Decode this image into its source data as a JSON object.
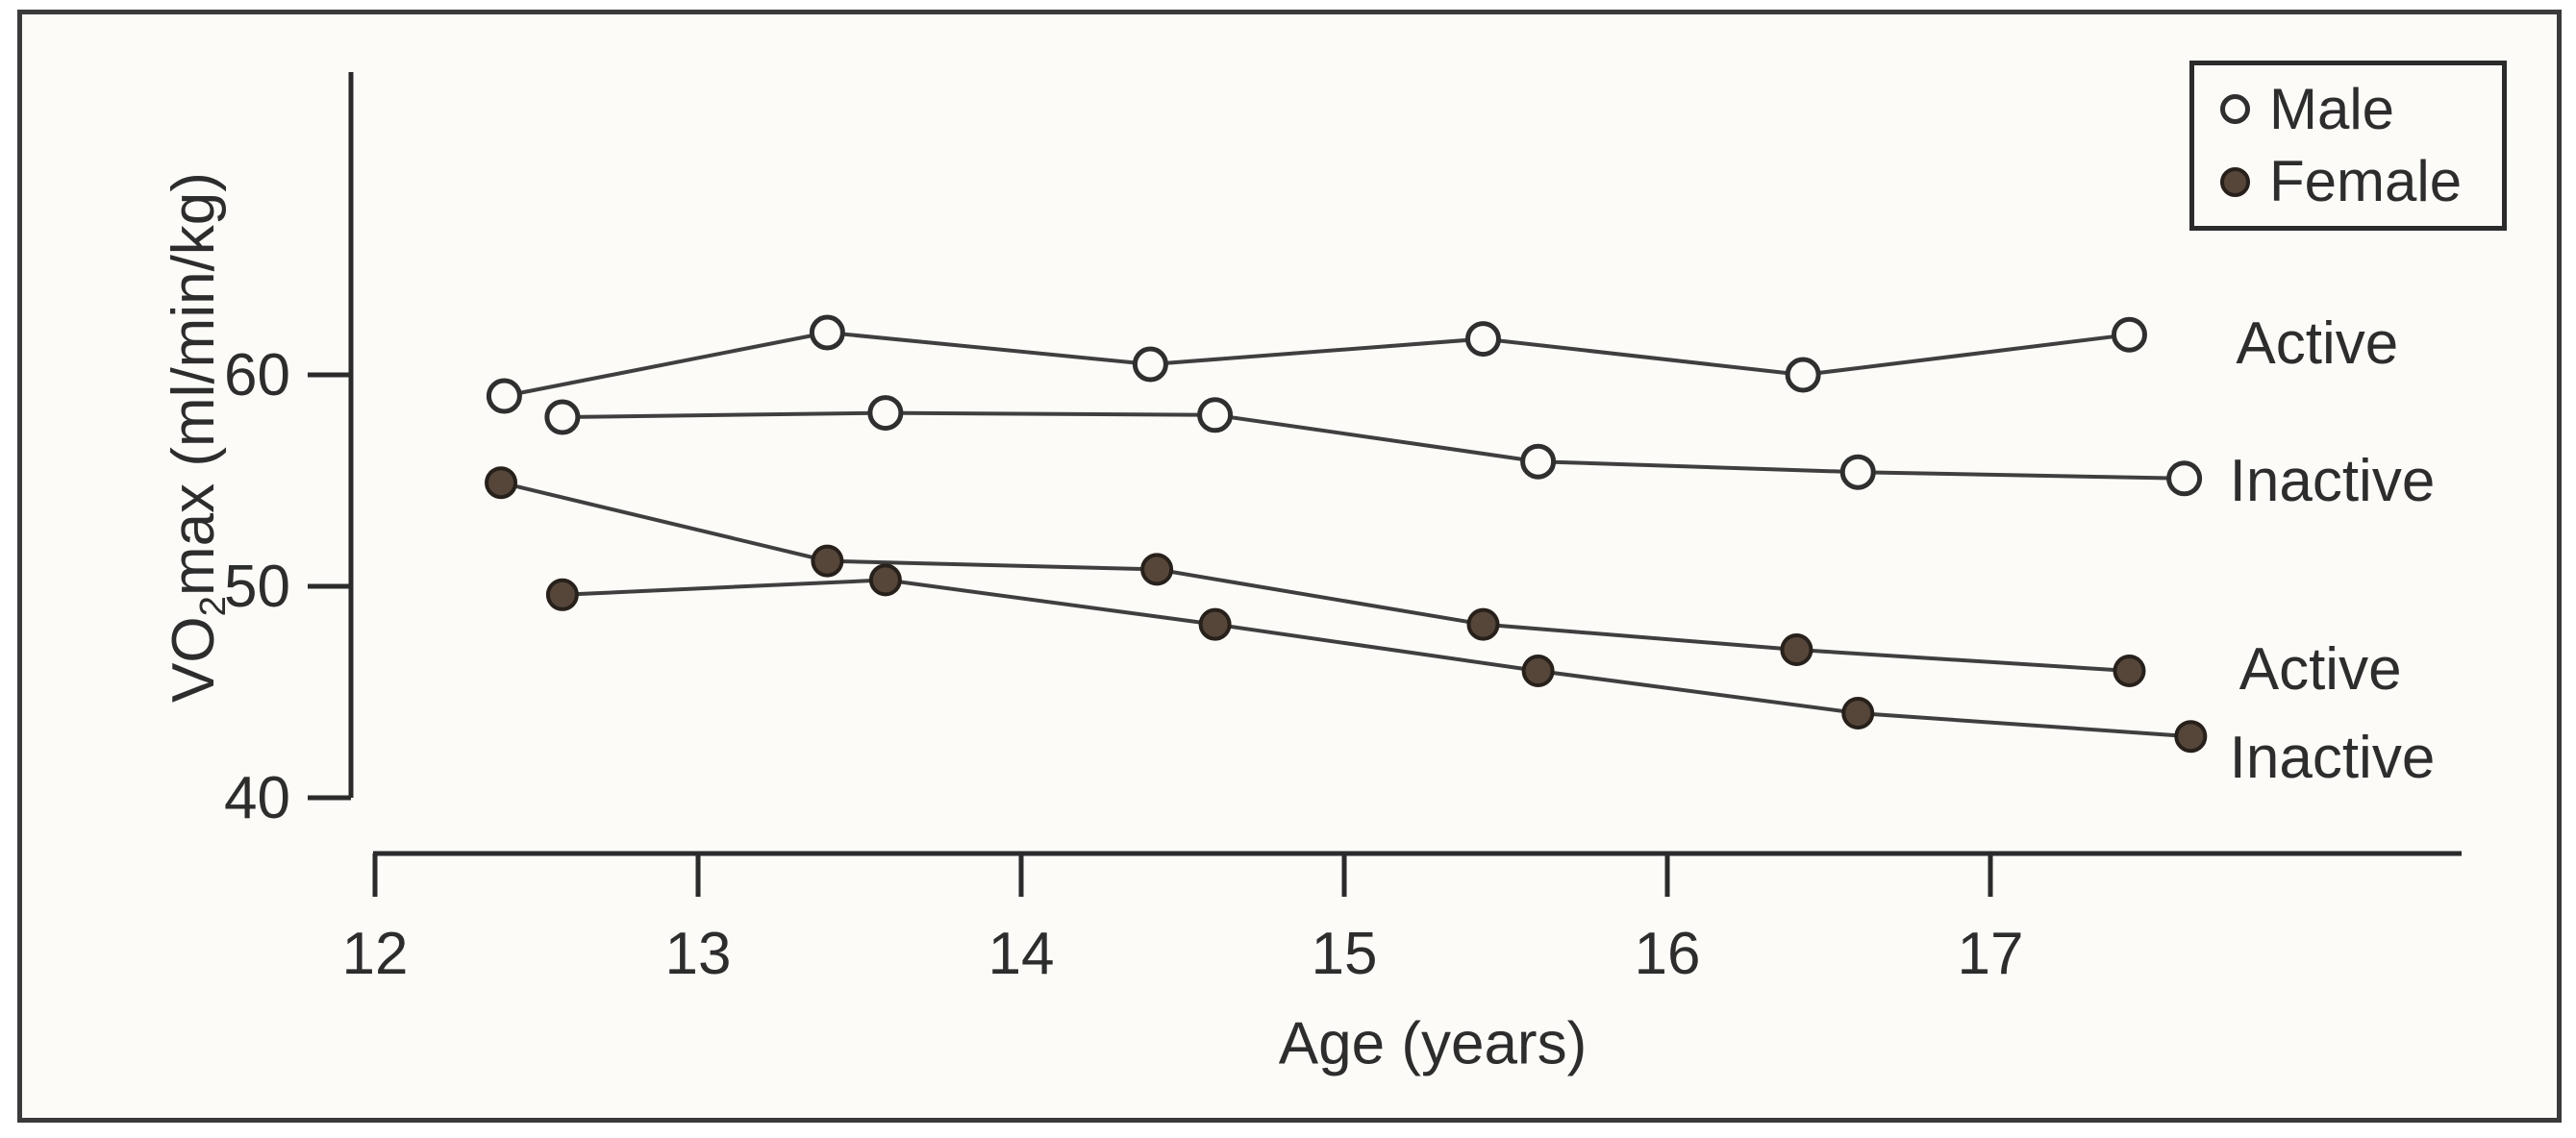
{
  "figure": {
    "paper_color": "#fcfbf8",
    "frame_color": "#3a3a3a",
    "axis_color": "#2b2b2b",
    "text_color": "#2d2d2d",
    "line_color": "#3f3f3f",
    "open_marker_fill": "#fcfbf8",
    "open_marker_stroke": "#2f2f2f",
    "filled_marker_fill": "#564639",
    "filled_marker_stroke": "#27201b"
  },
  "legend": {
    "items": [
      {
        "label": "Male",
        "marker": "open-circle"
      },
      {
        "label": "Female",
        "marker": "filled-circle"
      }
    ]
  },
  "axes": {
    "x_label": "Age (years)",
    "y_label_pre": "VO",
    "y_label_sub": "2",
    "y_label_post": "max (ml/min/kg)"
  },
  "chart_data": {
    "type": "line",
    "title": "",
    "xlabel": "Age (years)",
    "ylabel": "VO2max (ml/min/kg)",
    "xlim": [
      12,
      18.45
    ],
    "ylim": [
      40,
      74
    ],
    "x_ticks": [
      12,
      13,
      14,
      15,
      16,
      17
    ],
    "y_ticks": [
      60,
      50,
      40
    ],
    "grid": false,
    "legend_position": "top-right",
    "series": [
      {
        "name": "Male Active",
        "sex": "Male",
        "activity": "Active",
        "marker": "open",
        "x": [
          12.4,
          13.4,
          14.4,
          15.43,
          16.42,
          17.43
        ],
        "y": [
          59.0,
          62.0,
          60.5,
          61.7,
          60.0,
          61.9
        ]
      },
      {
        "name": "Male Inactive",
        "sex": "Male",
        "activity": "Inactive",
        "marker": "open",
        "x": [
          12.58,
          13.58,
          14.6,
          15.6,
          16.59,
          17.6
        ],
        "y": [
          58.0,
          58.2,
          58.1,
          55.9,
          55.4,
          55.1
        ]
      },
      {
        "name": "Female Active",
        "sex": "Female",
        "activity": "Active",
        "marker": "filled",
        "x": [
          12.39,
          13.4,
          14.42,
          15.43,
          16.4,
          17.43
        ],
        "y": [
          54.9,
          51.2,
          50.8,
          48.2,
          47.0,
          46.0
        ]
      },
      {
        "name": "Female Inactive",
        "sex": "Female",
        "activity": "Inactive",
        "marker": "filled",
        "x": [
          12.58,
          13.58,
          14.6,
          15.6,
          16.59,
          17.62
        ],
        "y": [
          49.6,
          50.3,
          48.2,
          46.0,
          44.0,
          42.9
        ]
      }
    ],
    "annotations": [
      {
        "text": "Active",
        "series": "Male Active",
        "age": 17.76,
        "value": 61.5
      },
      {
        "text": "Inactive",
        "series": "Male Inactive",
        "age": 17.74,
        "value": 55.0
      },
      {
        "text": "Active",
        "series": "Female Active",
        "age": 17.77,
        "value": 46.1
      },
      {
        "text": "Inactive",
        "series": "Female Inactive",
        "age": 17.74,
        "value": 41.9
      }
    ]
  }
}
